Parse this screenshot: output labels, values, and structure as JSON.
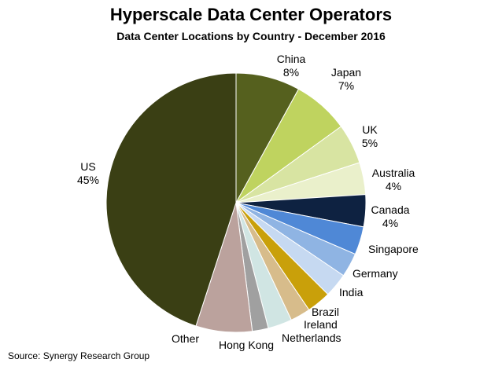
{
  "chart_data": {
    "type": "pie",
    "title": "Hyperscale Data Center Operators",
    "subtitle": "Data Center Locations by Country - December 2016",
    "source": "Source: Synergy Research Group",
    "slices": [
      {
        "label": "China",
        "value": 8,
        "value_label": "8%",
        "color": "#55601e"
      },
      {
        "label": "Japan",
        "value": 7,
        "value_label": "7%",
        "color": "#bfd35f"
      },
      {
        "label": "UK",
        "value": 5,
        "value_label": "5%",
        "color": "#d8e4a2"
      },
      {
        "label": "Australia",
        "value": 4,
        "value_label": "4%",
        "color": "#eaf0cb"
      },
      {
        "label": "Canada",
        "value": 4,
        "value_label": "4%",
        "color": "#0e2241"
      },
      {
        "label": "Singapore",
        "value": 3.5,
        "color": "#4f88d6"
      },
      {
        "label": "Germany",
        "value": 3,
        "color": "#8fb4e3"
      },
      {
        "label": "India",
        "value": 3,
        "color": "#c6d9f1"
      },
      {
        "label": "Brazil",
        "value": 3,
        "color": "#c9a00a"
      },
      {
        "label": "Ireland",
        "value": 2.5,
        "color": "#d7bc8b"
      },
      {
        "label": "Netherlands",
        "value": 3,
        "color": "#d0e5e3"
      },
      {
        "label": "Hong Kong",
        "value": 2,
        "color": "#a0a0a0"
      },
      {
        "label": "Other",
        "value": 7,
        "color": "#bba29d"
      },
      {
        "label": "US",
        "value": 45,
        "value_label": "45%",
        "color": "#3a3f14"
      }
    ]
  }
}
